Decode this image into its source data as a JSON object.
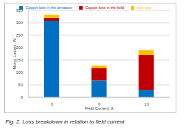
{
  "chart_data": {
    "type": "bar",
    "caption": "Fig. 2. Loss breakdown in relation to field current",
    "x_label": "Field Current, A",
    "y_label": "Motor Losses, W",
    "categories": [
      "3",
      "6",
      "10"
    ],
    "series": [
      {
        "name": "Copper loss in the armature",
        "color": "#0070c0",
        "values": [
          308,
          68,
          30
        ]
      },
      {
        "name": "Copper loss in the field",
        "color": "#c00000",
        "values": [
          12,
          50,
          140
        ]
      },
      {
        "name": "Iron loss",
        "color": "#ffc000",
        "values": [
          12,
          10,
          20
        ]
      }
    ],
    "stacked": true,
    "ylim": [
      0,
      350
    ],
    "yticks": [
      0,
      50,
      100,
      150,
      200,
      250,
      300,
      350
    ],
    "grid": true,
    "legend": "top"
  }
}
